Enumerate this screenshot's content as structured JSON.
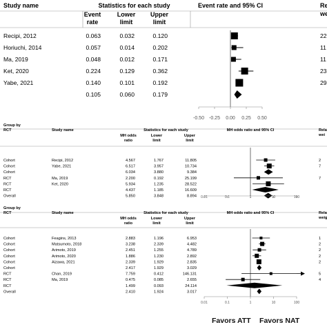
{
  "chart_data": [
    {
      "type": "table",
      "panel": "event-rate",
      "headers": {
        "study": "Study name",
        "stats": "Statistics for each study",
        "plot": "Event rate and 95% CI",
        "col1": [
          "Event",
          "rate"
        ],
        "col2": [
          "Lower",
          "limit"
        ],
        "col3": [
          "Upper",
          "limit"
        ],
        "weight": [
          "Relat",
          "weig"
        ]
      },
      "rows": [
        {
          "study": "Recipi, 2012",
          "est": "0.063",
          "lo": "0.032",
          "hi": "0.120",
          "weight": "22",
          "e": 0.063,
          "l": 0.032,
          "u": 0.12,
          "sq": 10
        },
        {
          "study": "Horiuchi, 2014",
          "est": "0.057",
          "lo": "0.014",
          "hi": "0.202",
          "weight": "11",
          "e": 0.057,
          "l": 0.014,
          "u": 0.202,
          "sq": 7
        },
        {
          "study": "Ma, 2019",
          "est": "0.048",
          "lo": "0.012",
          "hi": "0.171",
          "weight": "11",
          "e": 0.048,
          "l": 0.012,
          "u": 0.171,
          "sq": 7
        },
        {
          "study": "Ket, 2020",
          "est": "0.224",
          "lo": "0.129",
          "hi": "0.362",
          "weight": "23",
          "e": 0.224,
          "l": 0.129,
          "u": 0.362,
          "sq": 10
        },
        {
          "study": "Yabe, 2021",
          "est": "0.140",
          "lo": "0.101",
          "hi": "0.192",
          "weight": "29",
          "e": 0.14,
          "l": 0.101,
          "u": 0.192,
          "sq": 11
        },
        {
          "study": "",
          "est": "0.105",
          "lo": "0.060",
          "hi": "0.179",
          "weight": "",
          "e": 0.105,
          "l": 0.06,
          "u": 0.179,
          "diamond": true
        }
      ],
      "axis": {
        "type": "linear",
        "xlim": [
          -0.5,
          0.5
        ],
        "ticks": [
          "-0.50",
          "-0.25",
          "0.00",
          "0.25",
          "0.50"
        ],
        "tick_values": [
          -0.5,
          -0.25,
          0,
          0.25,
          0.5
        ]
      }
    },
    {
      "type": "table",
      "panel": "mh-rct",
      "headers": {
        "group": [
          "Group by",
          "RCT"
        ],
        "study": "Study name",
        "stats": "Statistics for each study",
        "plot": "MH odds ratio and 95% CI",
        "col1": [
          "MH odds",
          "ratio"
        ],
        "col2": [
          "Lower",
          "limit"
        ],
        "col3": [
          "Upper",
          "limit"
        ],
        "weight": [
          "Rela",
          "wei"
        ]
      },
      "rows": [
        {
          "group": "Cohort",
          "study": "Recipi, 2012",
          "est": "4.567",
          "lo": "1.767",
          "hi": "11.805",
          "weight": "2",
          "e": 4.567,
          "l": 1.767,
          "u": 11.805,
          "sq": 5
        },
        {
          "group": "Cohort",
          "study": "Yabe, 2021",
          "est": "6.517",
          "lo": "3.957",
          "hi": "10.734",
          "weight": "7",
          "e": 6.517,
          "l": 3.957,
          "u": 10.734,
          "sq": 7
        },
        {
          "group": "Cohort",
          "study": "",
          "est": "6.034",
          "lo": "3.880",
          "hi": "9.384",
          "weight": "",
          "e": 6.034,
          "l": 3.88,
          "u": 9.384,
          "diamond": true
        },
        {
          "group": "RCT",
          "study": "Ma, 2019",
          "est": "2.200",
          "lo": "0.192",
          "hi": "25.199",
          "weight": "7",
          "e": 2.2,
          "l": 0.192,
          "u": 25.199,
          "sq": 5
        },
        {
          "group": "RCT",
          "study": "Ket, 2020",
          "est": "5.934",
          "lo": "1.235",
          "hi": "28.522",
          "weight": "",
          "e": 5.934,
          "l": 1.235,
          "u": 28.522,
          "sq": 7
        },
        {
          "group": "RCT",
          "study": "",
          "est": "4.437",
          "lo": "1.185",
          "hi": "16.609",
          "weight": "",
          "e": 4.437,
          "l": 1.185,
          "u": 16.609,
          "diamond": true
        },
        {
          "group": "Overall",
          "study": "",
          "est": "5.850",
          "lo": "3.848",
          "hi": "8.894",
          "weight": "",
          "e": 5.85,
          "l": 3.848,
          "u": 8.894,
          "diamond": true
        }
      ],
      "axis": {
        "type": "log",
        "xlim": [
          0.01,
          100
        ],
        "ticks": [
          "0.01",
          "0.1",
          "1",
          "10",
          "100"
        ],
        "tick_values": [
          0.01,
          0.1,
          1,
          10,
          100
        ]
      }
    },
    {
      "type": "table",
      "panel": "mh-attnat",
      "headers": {
        "group": [
          "Group by",
          "RCT"
        ],
        "study": "Study name",
        "stats": "Statistics for each study",
        "plot": "MH odds ratio and 95% CI",
        "col1": [
          "MH odds",
          "ratio"
        ],
        "col2": [
          "Lower",
          "limit"
        ],
        "col3": [
          "Upper",
          "limit"
        ],
        "weight": [
          "Relat",
          "weig"
        ]
      },
      "rows": [
        {
          "group": "Cohort",
          "study": "Feagins, 2013",
          "est": "2.883",
          "lo": "1.196",
          "hi": "6.953",
          "weight": "1",
          "e": 2.883,
          "l": 1.196,
          "u": 6.953,
          "sq": 4
        },
        {
          "group": "Cohort",
          "study": "Matsumoto, 2018",
          "est": "3.238",
          "lo": "2.339",
          "hi": "4.482",
          "weight": "2",
          "e": 3.238,
          "l": 2.339,
          "u": 4.482,
          "sq": 6
        },
        {
          "group": "Cohort",
          "study": "Arimoto, 2019",
          "est": "2.451",
          "lo": "1.255",
          "hi": "4.789",
          "weight": "2",
          "e": 2.451,
          "l": 1.255,
          "u": 4.789,
          "sq": 5
        },
        {
          "group": "Cohort",
          "study": "Arimoto, 2020",
          "est": "1.886",
          "lo": "1.230",
          "hi": "2.892",
          "weight": "2",
          "e": 1.886,
          "l": 1.23,
          "u": 2.892,
          "sq": 6
        },
        {
          "group": "Cohort",
          "study": "Aizawa, 2021",
          "est": "2.339",
          "lo": "1.929",
          "hi": "2.835",
          "weight": "2",
          "e": 2.339,
          "l": 1.929,
          "u": 2.835,
          "sq": 7
        },
        {
          "group": "Cohort",
          "study": "",
          "est": "2.417",
          "lo": "1.929",
          "hi": "3.029",
          "weight": "",
          "e": 2.417,
          "l": 1.929,
          "u": 3.029,
          "diamond": true
        },
        {
          "group": "RCT",
          "study": "Chan, 2019",
          "est": "7.759",
          "lo": "0.412",
          "hi": "146.131",
          "weight": "5",
          "e": 7.759,
          "l": 0.412,
          "u": 146.131,
          "sq": 4,
          "arrow": true
        },
        {
          "group": "RCT",
          "study": "Ma, 2019",
          "est": "0.475",
          "lo": "0.085",
          "hi": "2.655",
          "weight": "4",
          "e": 0.475,
          "l": 0.085,
          "u": 2.655,
          "sq": 5
        },
        {
          "group": "RCT",
          "study": "",
          "est": "1.499",
          "lo": "0.093",
          "hi": "24.114",
          "weight": "",
          "e": 1.499,
          "l": 0.093,
          "u": 24.114,
          "diamond": true
        },
        {
          "group": "Overall",
          "study": "",
          "est": "2.410",
          "lo": "1.924",
          "hi": "3.017",
          "weight": "",
          "e": 2.41,
          "l": 1.924,
          "u": 3.017,
          "diamond": true
        }
      ],
      "axis": {
        "type": "log",
        "xlim": [
          0.01,
          100
        ],
        "ticks": [
          "0.01",
          "0.1",
          "1",
          "10",
          "100"
        ],
        "tick_values": [
          0.01,
          0.1,
          1,
          10,
          100
        ]
      }
    }
  ],
  "footer": {
    "left": "Favors ATT",
    "right": "Favors NAT"
  }
}
